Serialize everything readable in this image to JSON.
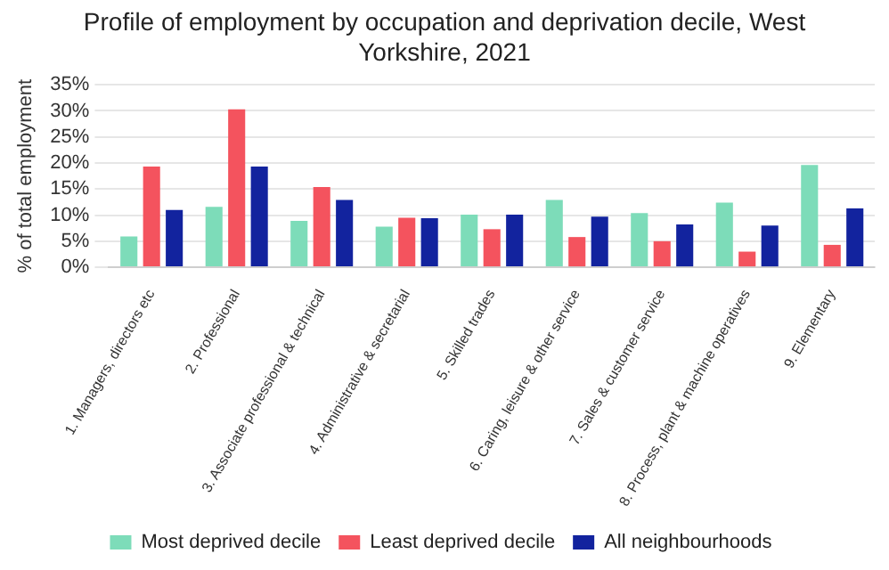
{
  "chart_data": {
    "type": "bar",
    "title": "Profile of employment by occupation and deprivation decile, West Yorkshire, 2021",
    "ylabel": "% of total employment",
    "categories": [
      "1. Managers, directors etc",
      "2. Professional",
      "3. Associate professional & technical",
      "4. Administrative & secretarial",
      "5. Skilled trades",
      "6. Caring, leisure & other service",
      "7. Sales & customer service",
      "8. Process, plant & machine operatives",
      "9. Elementary"
    ],
    "series": [
      {
        "name": "Most deprived decile",
        "color": "#7ddcb9",
        "values": [
          5.9,
          11.6,
          8.9,
          7.8,
          10.1,
          12.9,
          10.4,
          12.4,
          19.6
        ]
      },
      {
        "name": "Least deprived decile",
        "color": "#f4535e",
        "values": [
          19.3,
          30.3,
          15.4,
          9.5,
          7.3,
          5.8,
          5.0,
          3.0,
          4.3
        ]
      },
      {
        "name": "All neighbourhoods",
        "color": "#12239e",
        "values": [
          11.0,
          19.3,
          12.9,
          9.4,
          10.1,
          9.7,
          8.2,
          8.0,
          11.3
        ]
      }
    ],
    "ylim": [
      0,
      35
    ],
    "yticks": [
      {
        "value": 0,
        "label": "0%"
      },
      {
        "value": 5,
        "label": "5%"
      },
      {
        "value": 10,
        "label": "10%"
      },
      {
        "value": 15,
        "label": "15%"
      },
      {
        "value": 20,
        "label": "20%"
      },
      {
        "value": 25,
        "label": "25%"
      },
      {
        "value": 30,
        "label": "30%"
      },
      {
        "value": 35,
        "label": "35%"
      }
    ],
    "grid": "y",
    "legend": "bottom"
  }
}
